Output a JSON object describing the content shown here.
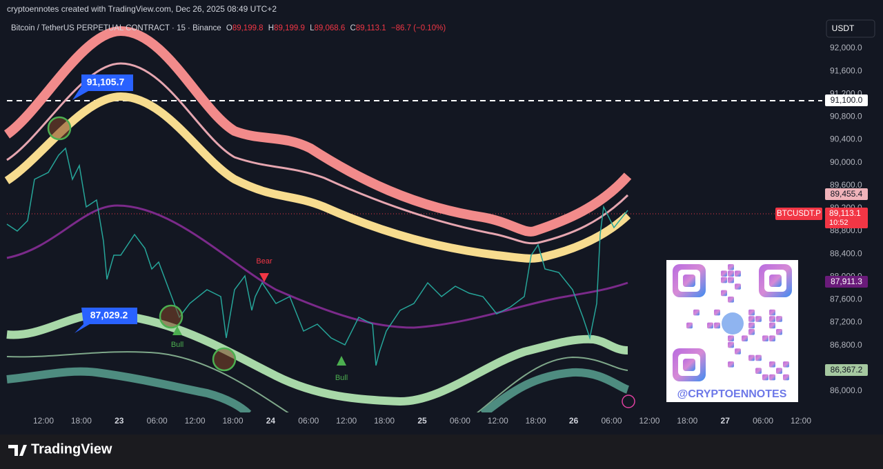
{
  "header": {
    "caption": "cryptoennotes created with TradingView.com, Dec 26, 2025 08:49 UTC+2"
  },
  "legend": {
    "symbol": "Bitcoin / TetherUS PERPETUAL CONTRACT · 15 · Binance",
    "open_label": "O",
    "open": "89,199.8",
    "high_label": "H",
    "high": "89,199.9",
    "low_label": "L",
    "low": "89,068.6",
    "close_label": "C",
    "close": "89,113.1",
    "change": "−86.7 (−0.10%)"
  },
  "currency_button": "USDT",
  "price_axis": [
    "92,000.0",
    "91,600.0",
    "91,200.0",
    "90,800.0",
    "90,400.0",
    "90,000.0",
    "89,600.0",
    "89,200.0",
    "88,800.0",
    "88,400.0",
    "88,000.0",
    "87,600.0",
    "87,200.0",
    "86,800.0",
    "86,000.0"
  ],
  "time_axis": [
    "12:00",
    "18:00",
    "23",
    "06:00",
    "12:00",
    "18:00",
    "24",
    "06:00",
    "12:00",
    "18:00",
    "25",
    "06:00",
    "12:00",
    "18:00",
    "26",
    "06:00",
    "12:00",
    "18:00",
    "27",
    "06:00",
    "12:00"
  ],
  "price_badges": {
    "level": "91,100.0",
    "upper_band": "89,455.4",
    "symbol": "BTCUSDT.P",
    "last_price": "89,113.1",
    "countdown": "10:52",
    "middle_band": "87,911.3",
    "lower_band": "86,367.2"
  },
  "callouts": [
    "91,105.7",
    "87,029.2"
  ],
  "signals": [
    "Bear",
    "Bull",
    "Bull"
  ],
  "qr_label": "@CRYPTOENNOTES",
  "footer": {
    "logo": "TradingView"
  }
}
